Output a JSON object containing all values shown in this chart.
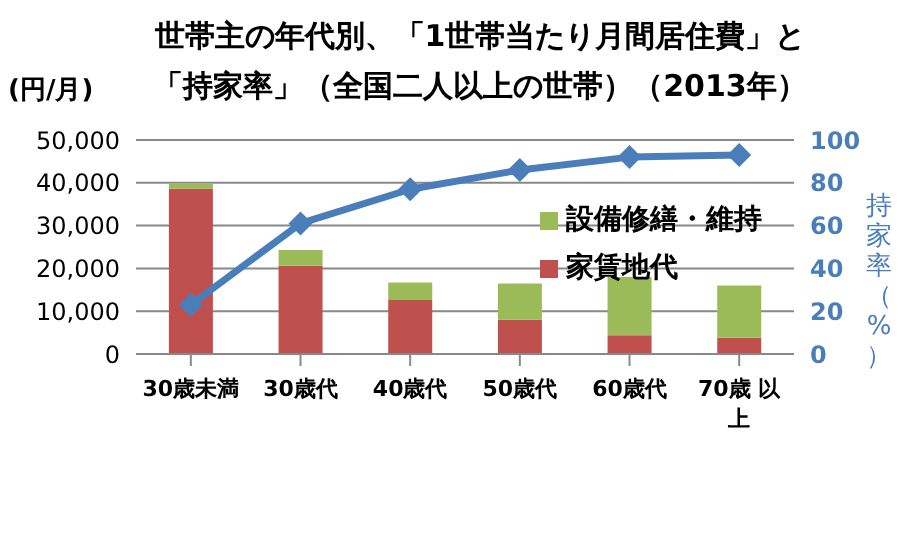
{
  "chart_data": {
    "type": "bar",
    "title": "世帯主の年代別、「1世帯当たり月間居住費」と「持家率」（全国二人以上の世帯）（2013年）",
    "ylabel": "(円/月)",
    "y2label": "持家率（%）",
    "categories": [
      "30歳未満",
      "30歳代",
      "40歳代",
      "50歳代",
      "60歳代",
      "70歳 以上"
    ],
    "stacked": true,
    "series": [
      {
        "name": "家賃地代",
        "color": "#c0504d",
        "values": [
          38600,
          20600,
          12600,
          8000,
          4400,
          3800
        ]
      },
      {
        "name": "設備修繕・維持",
        "color": "#9bbb59",
        "values": [
          1200,
          3700,
          4100,
          8500,
          13600,
          12200
        ]
      },
      {
        "type": "line",
        "axis": "y2",
        "color": "#4a7ebb",
        "marker": "diamond",
        "values": [
          23,
          61,
          77,
          86,
          92,
          93
        ]
      }
    ],
    "ylim": [
      0,
      50000
    ],
    "yticks": [
      {
        "value": 0,
        "label": "0"
      },
      {
        "value": 10000,
        "label": "10,000"
      },
      {
        "value": 20000,
        "label": "20,000"
      },
      {
        "value": 30000,
        "label": "30,000"
      },
      {
        "value": 40000,
        "label": "40,000"
      },
      {
        "value": 50000,
        "label": "50,000"
      }
    ],
    "y2lim": [
      0,
      100
    ],
    "y2ticks": [
      0,
      20,
      40,
      60,
      80,
      100
    ],
    "grid": "y",
    "legend": "right"
  }
}
